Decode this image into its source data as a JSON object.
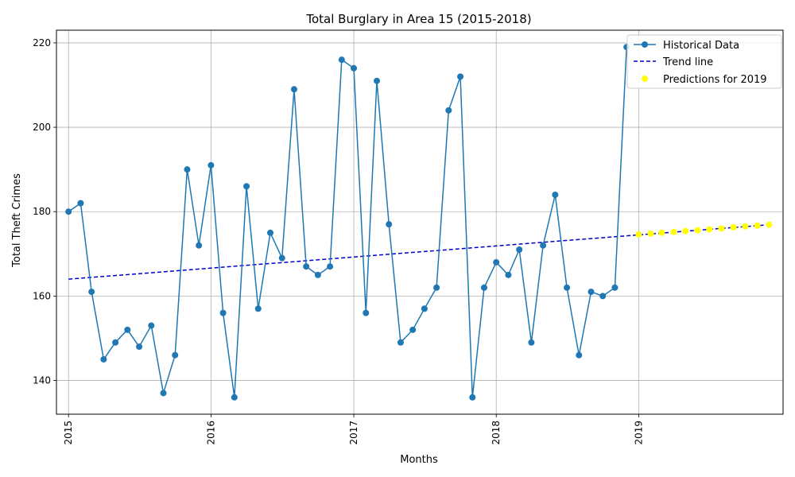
{
  "chart_data": {
    "type": "line",
    "title": "Total Burglary in Area 15 (2015-2018)",
    "xlabel": "Months",
    "ylabel": "Total Theft Crimes",
    "xlim": [
      "2014-12-01",
      "2020-01-06"
    ],
    "ylim": [
      132,
      223
    ],
    "grid": true,
    "legend_position": "top-right",
    "x_ticks": [
      "2015-01-01",
      "2016-01-01",
      "2017-01-01",
      "2018-01-01",
      "2019-01-01"
    ],
    "x_tick_labels": [
      "2015",
      "2016",
      "2017",
      "2018",
      "2019"
    ],
    "y_ticks": [
      140,
      160,
      180,
      200,
      220
    ],
    "y_tick_labels": [
      "140",
      "160",
      "180",
      "200",
      "220"
    ],
    "series": [
      {
        "name": "Historical Data",
        "style": "line-marker",
        "color": "#1f77b4",
        "x": [
          "2015-01-01",
          "2015-02-01",
          "2015-03-01",
          "2015-04-01",
          "2015-05-01",
          "2015-06-01",
          "2015-07-01",
          "2015-08-01",
          "2015-09-01",
          "2015-10-01",
          "2015-11-01",
          "2015-12-01",
          "2016-01-01",
          "2016-02-01",
          "2016-03-01",
          "2016-04-01",
          "2016-05-01",
          "2016-06-01",
          "2016-07-01",
          "2016-08-01",
          "2016-09-01",
          "2016-10-01",
          "2016-11-01",
          "2016-12-01",
          "2017-01-01",
          "2017-02-01",
          "2017-03-01",
          "2017-04-01",
          "2017-05-01",
          "2017-06-01",
          "2017-07-01",
          "2017-08-01",
          "2017-09-01",
          "2017-10-01",
          "2017-11-01",
          "2017-12-01",
          "2018-01-01",
          "2018-02-01",
          "2018-03-01",
          "2018-04-01",
          "2018-05-01",
          "2018-06-01",
          "2018-07-01",
          "2018-08-01",
          "2018-09-01",
          "2018-10-01",
          "2018-11-01",
          "2018-12-01"
        ],
        "values": [
          180,
          182,
          161,
          145,
          149,
          152,
          148,
          153,
          137,
          146,
          190,
          172,
          191,
          156,
          136,
          186,
          157,
          175,
          169,
          209,
          167,
          165,
          167,
          216,
          214,
          156,
          211,
          177,
          149,
          152,
          157,
          162,
          204,
          212,
          136,
          162,
          168,
          165,
          171,
          149,
          172,
          184,
          162,
          146,
          161,
          160,
          162,
          219
        ]
      },
      {
        "name": "Trend line",
        "style": "dashed",
        "color": "#0000cc",
        "x": [
          "2015-01-01",
          "2019-12-01"
        ],
        "values": [
          164.0,
          176.9
        ]
      },
      {
        "name": "Predictions for 2019",
        "style": "scatter",
        "color": "#ffff00",
        "x": [
          "2019-01-01",
          "2019-02-01",
          "2019-03-01",
          "2019-04-01",
          "2019-05-01",
          "2019-06-01",
          "2019-07-01",
          "2019-08-01",
          "2019-09-01",
          "2019-10-01",
          "2019-11-01",
          "2019-12-01"
        ],
        "values": [
          174.6,
          174.8,
          175.0,
          175.2,
          175.4,
          175.6,
          175.8,
          176.0,
          176.3,
          176.5,
          176.7,
          176.9
        ]
      }
    ]
  }
}
